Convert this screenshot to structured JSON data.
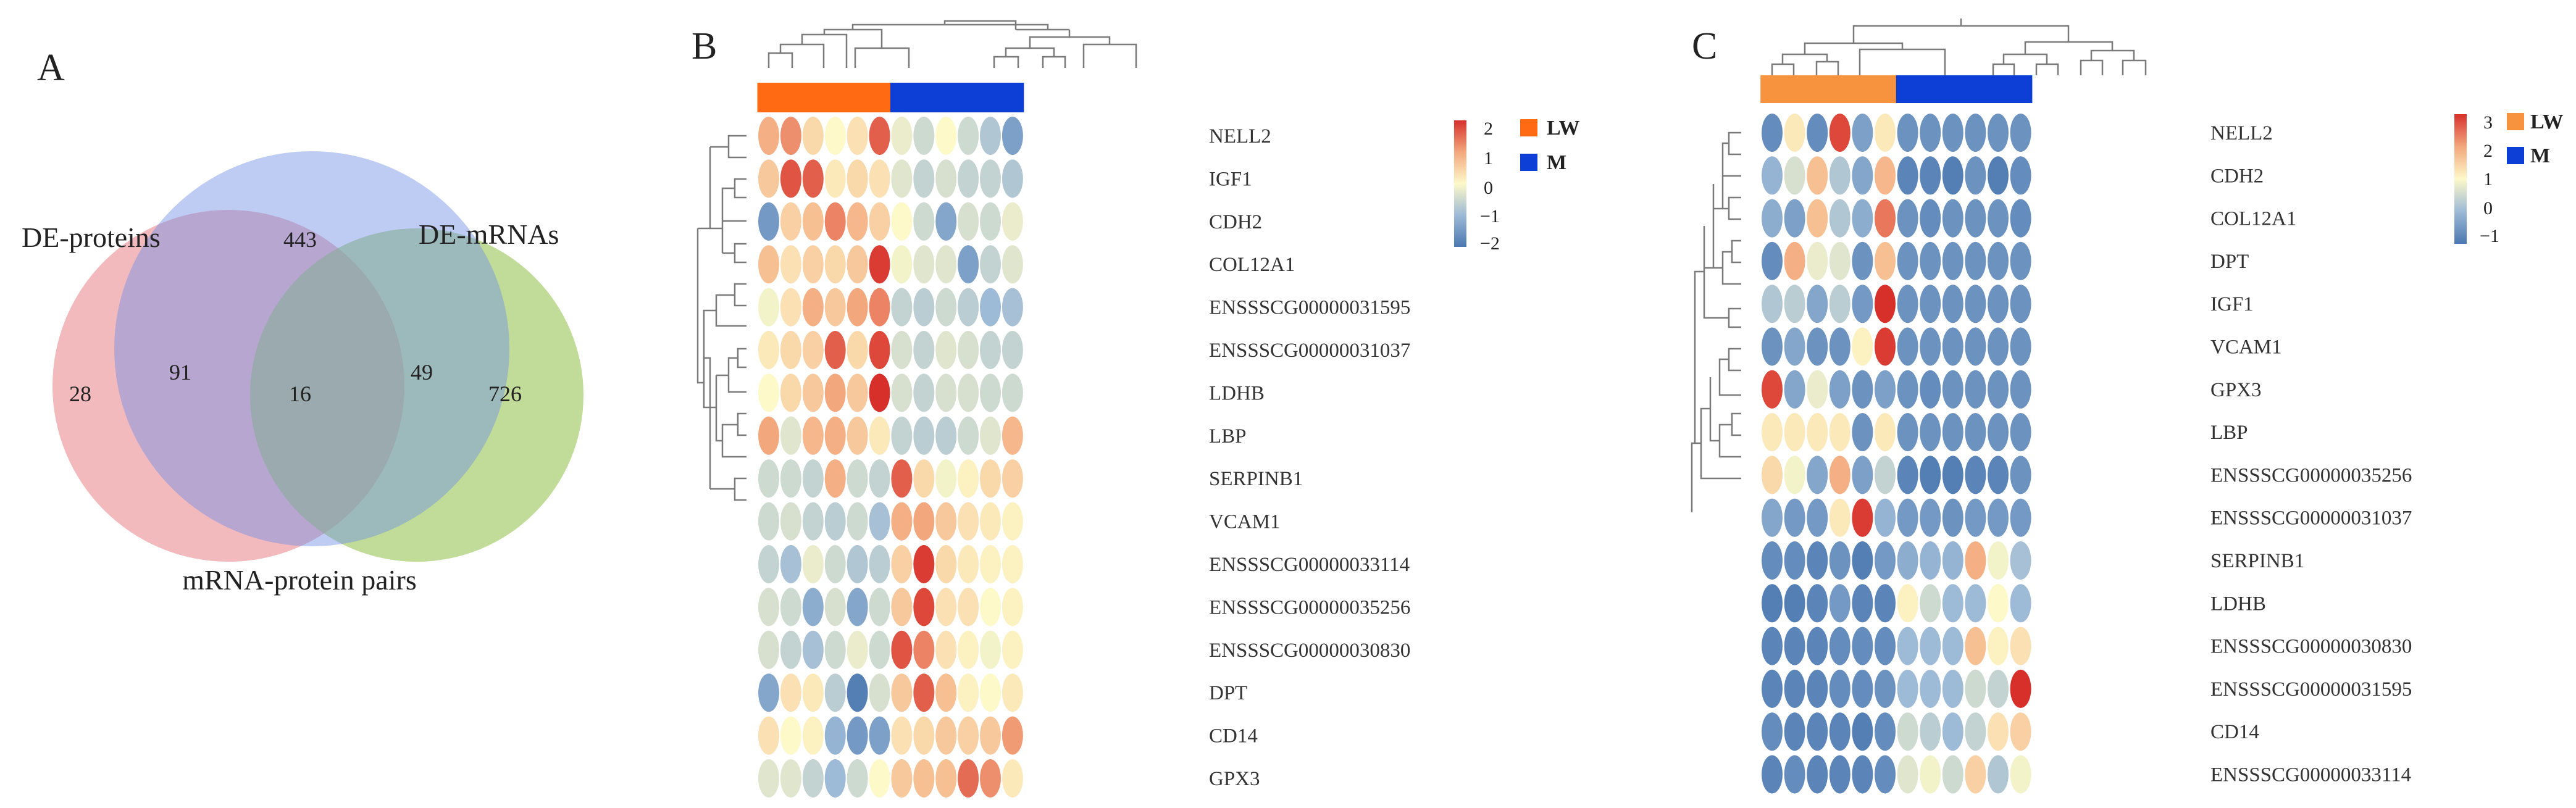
{
  "panels": {
    "a": "A",
    "b": "B",
    "c": "C"
  },
  "venn": {
    "sets": [
      {
        "name": "DE-proteins",
        "color": "#ec8f96"
      },
      {
        "name": "DE-mRNAs",
        "color": "#9bc75a"
      },
      {
        "name": "mRNA-protein pairs",
        "color": "#6e8fe6"
      }
    ],
    "regions": {
      "proteins_only": "28",
      "pairs_only": "443",
      "mrnas_only": "726",
      "proteins_pairs": "91",
      "pairs_mrnas": "49",
      "all_three": "16"
    }
  },
  "chart_data": [
    {
      "type": "heatmap",
      "panel": "B",
      "groups": [
        {
          "name": "LW",
          "color": "#ff6a13"
        },
        {
          "name": "M",
          "color": "#0d3fd6"
        }
      ],
      "column_groups": [
        "LW",
        "LW",
        "LW",
        "LW",
        "LW",
        "LW",
        "M",
        "M",
        "M",
        "M",
        "M",
        "M"
      ],
      "colorbar": {
        "min": -2,
        "max": 2,
        "ticks": [
          "2",
          "1",
          "0",
          "−1",
          "−2"
        ]
      },
      "rows": [
        "NELL2",
        "IGF1",
        "CDH2",
        "COL12A1",
        "ENSSSCG00000031595",
        "ENSSSCG00000031037",
        "LDHB",
        "LBP",
        "SERPINB1",
        "VCAM1",
        "ENSSSCG00000033114",
        "ENSSSCG00000035256",
        "ENSSSCG00000030830",
        "DPT",
        "CD14",
        "GPX3"
      ],
      "values": [
        [
          0.9,
          1.2,
          0.4,
          0.0,
          0.3,
          1.6,
          -0.2,
          -0.5,
          0.0,
          -0.5,
          -0.8,
          -1.4
        ],
        [
          0.6,
          1.7,
          1.6,
          0.2,
          0.4,
          0.3,
          -0.3,
          -0.6,
          -0.4,
          -0.6,
          -0.6,
          -0.8
        ],
        [
          -1.5,
          0.5,
          0.7,
          1.3,
          0.8,
          0.5,
          0.0,
          -0.5,
          -1.3,
          -0.4,
          -0.5,
          -0.2
        ],
        [
          0.7,
          0.3,
          0.5,
          0.4,
          0.6,
          1.9,
          -0.1,
          -0.3,
          -0.3,
          -1.4,
          -0.6,
          -0.3
        ],
        [
          -0.1,
          0.3,
          0.9,
          0.6,
          1.0,
          1.3,
          -0.6,
          -0.7,
          -0.5,
          -0.7,
          -1.0,
          -0.9
        ],
        [
          0.2,
          0.4,
          0.5,
          1.6,
          0.4,
          1.8,
          -0.4,
          -0.6,
          -0.3,
          -0.4,
          -0.6,
          -0.6
        ],
        [
          0.0,
          0.4,
          0.6,
          1.0,
          0.6,
          2.0,
          -0.4,
          -0.6,
          -0.4,
          -0.4,
          -0.5,
          -0.5
        ],
        [
          1.0,
          -0.3,
          0.8,
          0.9,
          0.6,
          0.2,
          -0.6,
          -0.7,
          -0.7,
          -0.5,
          -0.3,
          0.8
        ],
        [
          -0.5,
          -0.5,
          -0.6,
          0.9,
          -0.5,
          -0.6,
          1.6,
          0.4,
          -0.1,
          0.1,
          0.4,
          0.5
        ],
        [
          -0.5,
          -0.4,
          -0.6,
          -0.7,
          -0.5,
          -0.9,
          0.9,
          1.0,
          0.6,
          0.3,
          0.2,
          0.1
        ],
        [
          -0.6,
          -0.9,
          -0.2,
          -0.5,
          -0.8,
          -0.7,
          0.5,
          1.9,
          0.4,
          0.2,
          0.1,
          0.1
        ],
        [
          -0.4,
          -0.5,
          -1.2,
          -0.4,
          -1.3,
          -0.5,
          0.6,
          1.8,
          0.3,
          0.3,
          0.0,
          0.1
        ],
        [
          -0.4,
          -0.6,
          -0.9,
          -0.5,
          -0.2,
          -0.5,
          1.7,
          1.3,
          0.3,
          0.1,
          -0.1,
          0.1
        ],
        [
          -1.3,
          0.3,
          0.2,
          -0.7,
          -1.9,
          -0.4,
          0.6,
          1.6,
          0.7,
          0.1,
          0.0,
          0.2
        ],
        [
          0.3,
          0.0,
          0.1,
          -1.1,
          -1.5,
          -1.4,
          0.3,
          0.4,
          0.6,
          0.5,
          0.6,
          1.1
        ],
        [
          -0.3,
          -0.3,
          -0.6,
          -1.0,
          -0.5,
          0.0,
          0.6,
          0.7,
          0.7,
          1.5,
          1.2,
          0.2
        ]
      ]
    },
    {
      "type": "heatmap",
      "panel": "C",
      "groups": [
        {
          "name": "LW",
          "color": "#f7923e"
        },
        {
          "name": "M",
          "color": "#0d3fd6"
        }
      ],
      "column_groups": [
        "LW",
        "LW",
        "LW",
        "LW",
        "LW",
        "LW",
        "M",
        "M",
        "M",
        "M",
        "M",
        "M"
      ],
      "colorbar": {
        "min": -1,
        "max": 3,
        "ticks": [
          "3",
          "2",
          "1",
          "0",
          "−1"
        ]
      },
      "rows": [
        "NELL2",
        "CDH2",
        "COL12A1",
        "DPT",
        "IGF1",
        "VCAM1",
        "GPX3",
        "LBP",
        "ENSSSCG00000035256",
        "ENSSSCG00000031037",
        "SERPINB1",
        "LDHB",
        "ENSSSCG00000030830",
        "ENSSSCG00000031595",
        "CD14",
        "ENSSSCG00000033114"
      ],
      "values": [
        [
          -0.7,
          1.2,
          -0.7,
          2.8,
          -0.4,
          1.2,
          -0.6,
          -0.6,
          -0.6,
          -0.6,
          -0.6,
          -0.6
        ],
        [
          -0.1,
          0.6,
          1.7,
          0.2,
          -0.3,
          1.8,
          -0.8,
          -0.8,
          -0.9,
          -0.6,
          -0.9,
          -0.7
        ],
        [
          -0.2,
          -0.4,
          1.7,
          0.2,
          -0.2,
          2.4,
          -0.6,
          -0.7,
          -0.6,
          -0.6,
          -0.6,
          -0.7
        ],
        [
          -0.7,
          1.9,
          0.8,
          0.7,
          -0.6,
          1.7,
          -0.6,
          -0.6,
          -0.6,
          -0.6,
          -0.6,
          -0.6
        ],
        [
          0.2,
          0.3,
          -0.3,
          0.3,
          -0.5,
          3.0,
          -0.6,
          -0.6,
          -0.6,
          -0.6,
          -0.6,
          -0.6
        ],
        [
          -0.6,
          -0.3,
          -0.6,
          -0.6,
          1.1,
          2.9,
          -0.6,
          -0.6,
          -0.6,
          -0.6,
          -0.6,
          -0.6
        ],
        [
          2.8,
          -0.3,
          0.8,
          -0.4,
          -0.6,
          -0.4,
          -0.6,
          -0.7,
          -0.6,
          -0.6,
          -0.6,
          -0.6
        ],
        [
          1.2,
          1.2,
          1.2,
          1.2,
          -0.6,
          1.2,
          -0.6,
          -0.6,
          -0.6,
          -0.6,
          -0.6,
          -0.6
        ],
        [
          1.4,
          0.9,
          -0.3,
          1.9,
          -0.4,
          0.4,
          -0.8,
          -0.9,
          -0.9,
          -0.8,
          -0.8,
          -0.6
        ],
        [
          -0.3,
          -0.5,
          -0.5,
          1.2,
          2.9,
          -0.1,
          -0.5,
          -0.5,
          -0.6,
          -0.5,
          -0.5,
          -0.5
        ],
        [
          -0.7,
          -0.7,
          -0.8,
          -0.6,
          -0.9,
          -0.5,
          -0.2,
          -0.1,
          -0.1,
          1.9,
          0.9,
          0.1
        ],
        [
          -0.9,
          -0.9,
          -0.8,
          -0.5,
          -0.8,
          -0.8,
          1.1,
          0.5,
          0.0,
          0.0,
          1.0,
          0.0
        ],
        [
          -0.8,
          -0.8,
          -0.8,
          -0.7,
          -0.7,
          -0.7,
          0.0,
          0.0,
          0.0,
          1.7,
          1.1,
          1.3
        ],
        [
          -0.8,
          -0.8,
          -0.8,
          -0.7,
          -0.7,
          -0.6,
          0.0,
          0.0,
          0.0,
          0.5,
          0.4,
          3.0
        ],
        [
          -0.7,
          -0.8,
          -0.8,
          -0.8,
          -0.9,
          -0.7,
          0.5,
          0.3,
          0.0,
          0.4,
          1.3,
          1.5
        ],
        [
          -0.8,
          -0.7,
          -0.8,
          -0.8,
          -0.8,
          -0.7,
          0.7,
          0.9,
          0.5,
          1.5,
          0.2,
          0.9
        ]
      ]
    }
  ]
}
